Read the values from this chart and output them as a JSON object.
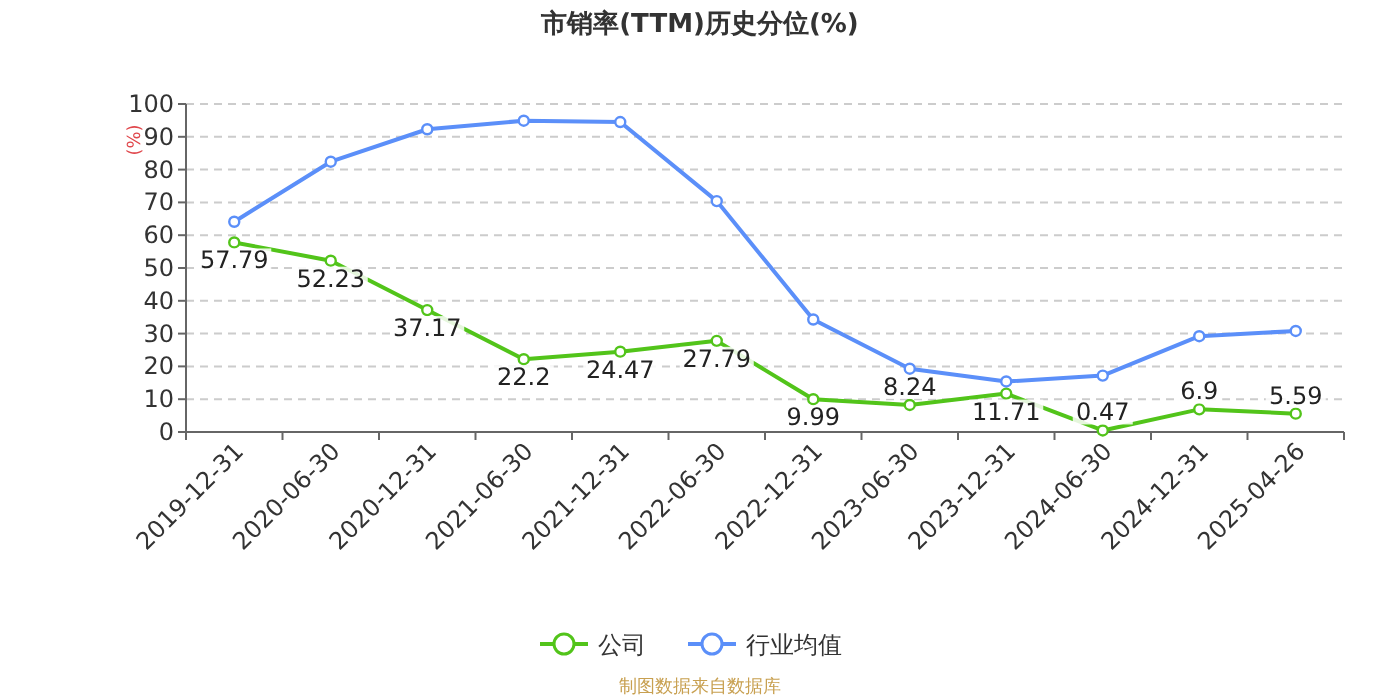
{
  "chart_data": {
    "type": "line",
    "title": "市销率(TTM)历史分位(%)",
    "ylabel": "(%)",
    "categories": [
      "2019-12-31",
      "2020-06-30",
      "2020-12-31",
      "2021-06-30",
      "2021-12-31",
      "2022-06-30",
      "2022-12-31",
      "2023-06-30",
      "2023-12-31",
      "2024-06-30",
      "2024-12-31",
      "2025-04-26"
    ],
    "series": [
      {
        "name": "公司",
        "color": "#52c41a",
        "values": [
          57.79,
          52.23,
          37.17,
          22.2,
          24.47,
          27.79,
          9.99,
          8.24,
          11.71,
          0.47,
          6.9,
          5.59
        ],
        "value_labels": [
          "57.79",
          "52.23",
          "37.17",
          "22.2",
          "24.47",
          "27.79",
          "9.99",
          "8.24",
          "11.71",
          "0.47",
          "6.9",
          "5.59"
        ]
      },
      {
        "name": "行业均值",
        "color": "#5b8ff9",
        "values": [
          64.1,
          82.4,
          92.3,
          94.9,
          94.5,
          70.4,
          34.3,
          19.3,
          15.4,
          17.2,
          29.2,
          30.8
        ]
      }
    ],
    "ylim": [
      0,
      100
    ],
    "yticks": [
      0,
      10,
      20,
      30,
      40,
      50,
      60,
      70,
      80,
      90,
      100
    ],
    "grid": "y",
    "legend": "bottom",
    "marker": "circle",
    "line_style": "solid",
    "annotations": [
      "制图数据来自数据库"
    ]
  }
}
